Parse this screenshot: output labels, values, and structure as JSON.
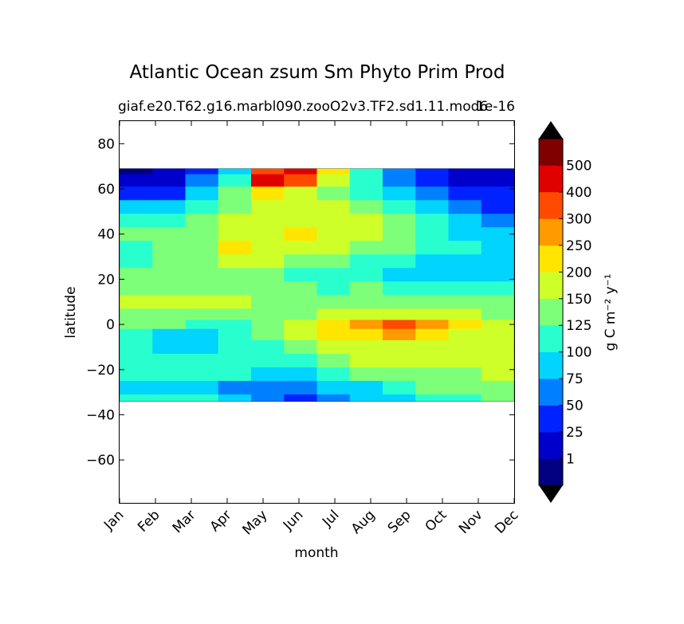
{
  "chart_data": {
    "type": "heatmap",
    "subtype": "filled-contour",
    "title": "Atlantic Ocean zsum Sm Phyto Prim Prod",
    "subtitle_left": "giaf.e20.T62.g16.marbl090.zooO2v3.TF2.sd1.11.mod6",
    "subtitle_right": "1e-16",
    "xlabel": "month",
    "ylabel": "latitude",
    "x_ticks": [
      "Jan",
      "Feb",
      "Mar",
      "Apr",
      "May",
      "Jun",
      "Jul",
      "Aug",
      "Sep",
      "Oct",
      "Nov",
      "Dec"
    ],
    "y_ticks": [
      80,
      60,
      40,
      20,
      0,
      -20,
      -40,
      -60
    ],
    "y_tick_labels": [
      "80",
      "60",
      "40",
      "20",
      "0",
      "−20",
      "−40",
      "−60"
    ],
    "ylim": [
      -79,
      90
    ],
    "data_lat_range": [
      -34,
      69
    ],
    "colorbar": {
      "label": "g C m⁻² y⁻¹",
      "levels": [
        "1",
        "25",
        "50",
        "75",
        "100",
        "125",
        "150",
        "200",
        "250",
        "300",
        "400",
        "500"
      ],
      "colors": [
        "#000080",
        "#0000cd",
        "#0022ff",
        "#0080ff",
        "#00d4ff",
        "#29ffce",
        "#7dff7a",
        "#ceff29",
        "#ffe500",
        "#ff9a00",
        "#ff4a00",
        "#e00000",
        "#800000"
      ],
      "extend_colors": {
        "under": "#000000",
        "over": "#000000"
      }
    },
    "field": {
      "latitudes": [
        69,
        64,
        58,
        52,
        46,
        40,
        34,
        28,
        22,
        16,
        10,
        4,
        0,
        -4,
        -10,
        -16,
        -22,
        -28,
        -34
      ],
      "months": [
        "Jan",
        "Feb",
        "Mar",
        "Apr",
        "May",
        "Jun",
        "Jul",
        "Aug",
        "Sep",
        "Oct",
        "Nov",
        "Dec"
      ],
      "levels_by_month": [
        [
          0,
          1,
          2,
          4,
          5,
          6,
          5,
          5,
          6,
          6,
          7,
          6,
          6,
          5,
          5,
          5,
          5,
          4,
          5
        ],
        [
          1,
          1,
          2,
          4,
          5,
          6,
          6,
          6,
          6,
          6,
          7,
          6,
          6,
          4,
          4,
          5,
          5,
          4,
          5
        ],
        [
          2,
          3,
          4,
          5,
          6,
          6,
          6,
          6,
          6,
          6,
          7,
          6,
          5,
          4,
          4,
          5,
          5,
          4,
          5
        ],
        [
          4,
          5,
          6,
          6,
          7,
          7,
          8,
          7,
          6,
          6,
          7,
          6,
          5,
          5,
          5,
          5,
          5,
          3,
          4
        ],
        [
          10,
          11,
          8,
          7,
          7,
          7,
          7,
          7,
          6,
          6,
          6,
          6,
          6,
          6,
          5,
          5,
          4,
          3,
          3
        ],
        [
          11,
          10,
          7,
          7,
          7,
          8,
          7,
          6,
          5,
          6,
          6,
          6,
          7,
          7,
          6,
          5,
          4,
          3,
          2
        ],
        [
          8,
          7,
          6,
          7,
          7,
          7,
          7,
          6,
          5,
          5,
          6,
          7,
          8,
          8,
          7,
          6,
          5,
          4,
          3
        ],
        [
          5,
          5,
          5,
          6,
          7,
          7,
          6,
          5,
          5,
          6,
          6,
          7,
          9,
          8,
          7,
          7,
          6,
          4,
          4
        ],
        [
          3,
          3,
          4,
          5,
          6,
          6,
          6,
          5,
          4,
          5,
          6,
          7,
          10,
          9,
          7,
          7,
          6,
          5,
          4
        ],
        [
          2,
          2,
          3,
          4,
          5,
          5,
          5,
          4,
          4,
          5,
          6,
          7,
          9,
          8,
          7,
          7,
          6,
          6,
          5
        ],
        [
          1,
          1,
          2,
          3,
          4,
          4,
          5,
          4,
          4,
          5,
          6,
          7,
          8,
          7,
          7,
          7,
          6,
          6,
          5
        ],
        [
          1,
          1,
          2,
          2,
          3,
          4,
          4,
          4,
          4,
          5,
          6,
          6,
          7,
          7,
          7,
          7,
          7,
          6,
          6
        ]
      ]
    }
  }
}
